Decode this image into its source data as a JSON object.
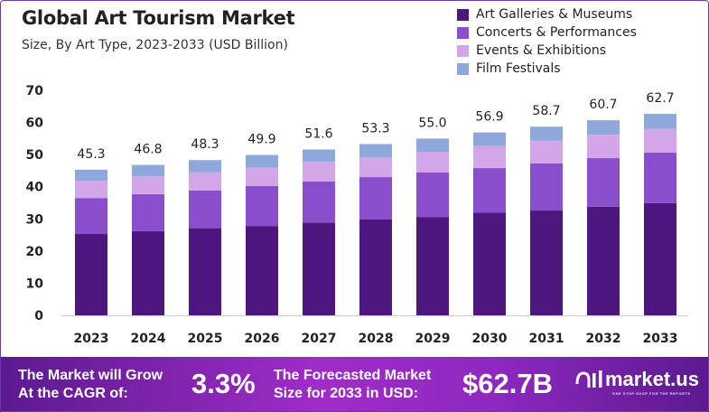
{
  "chart_data": {
    "type": "bar",
    "stacked": true,
    "title": "Global Art Tourism Market",
    "subtitle": "Size, By Art Type, 2023-2033 (USD Billion)",
    "xlabel": "",
    "ylabel": "",
    "ylim": [
      0,
      70
    ],
    "yticks": [
      0,
      10,
      20,
      30,
      40,
      50,
      60,
      70
    ],
    "grid": false,
    "legend_position": "top-right",
    "categories": [
      "2023",
      "2024",
      "2025",
      "2026",
      "2027",
      "2028",
      "2029",
      "2030",
      "2031",
      "2032",
      "2033"
    ],
    "totals": [
      "45.3",
      "46.8",
      "48.3",
      "49.9",
      "51.6",
      "53.3",
      "55.0",
      "56.9",
      "58.7",
      "60.7",
      "62.7"
    ],
    "series": [
      {
        "name": "Art Galleries & Museums",
        "color": "#4e1780",
        "values": [
          25.3,
          26.2,
          27.1,
          27.8,
          28.8,
          29.8,
          30.6,
          31.9,
          32.6,
          33.8,
          34.9
        ]
      },
      {
        "name": "Concerts & Performances",
        "color": "#8a4dcc",
        "values": [
          11.2,
          11.5,
          11.7,
          12.4,
          12.8,
          13.2,
          13.9,
          13.9,
          14.7,
          15.1,
          15.7
        ]
      },
      {
        "name": "Events & Exhibitions",
        "color": "#d3a6ea",
        "values": [
          5.4,
          5.6,
          5.7,
          5.8,
          6.2,
          6.1,
          6.4,
          6.9,
          7.0,
          7.3,
          7.4
        ]
      },
      {
        "name": "Film Festivals",
        "color": "#8fa8dc",
        "values": [
          3.4,
          3.5,
          3.8,
          3.9,
          3.8,
          4.2,
          4.1,
          4.2,
          4.4,
          4.5,
          4.7
        ]
      }
    ]
  },
  "footer": {
    "cagr_label_1": "The Market will Grow",
    "cagr_label_2": "At the CAGR of:",
    "cagr_value": "3.3%",
    "forecast_label_1": "The Forecasted Market",
    "forecast_label_2": "Size for 2033 in USD:",
    "forecast_value": "$62.7B",
    "logo_text": "market.us",
    "logo_tagline": "ONE STOP SHOP FOR THE REPORTS"
  }
}
